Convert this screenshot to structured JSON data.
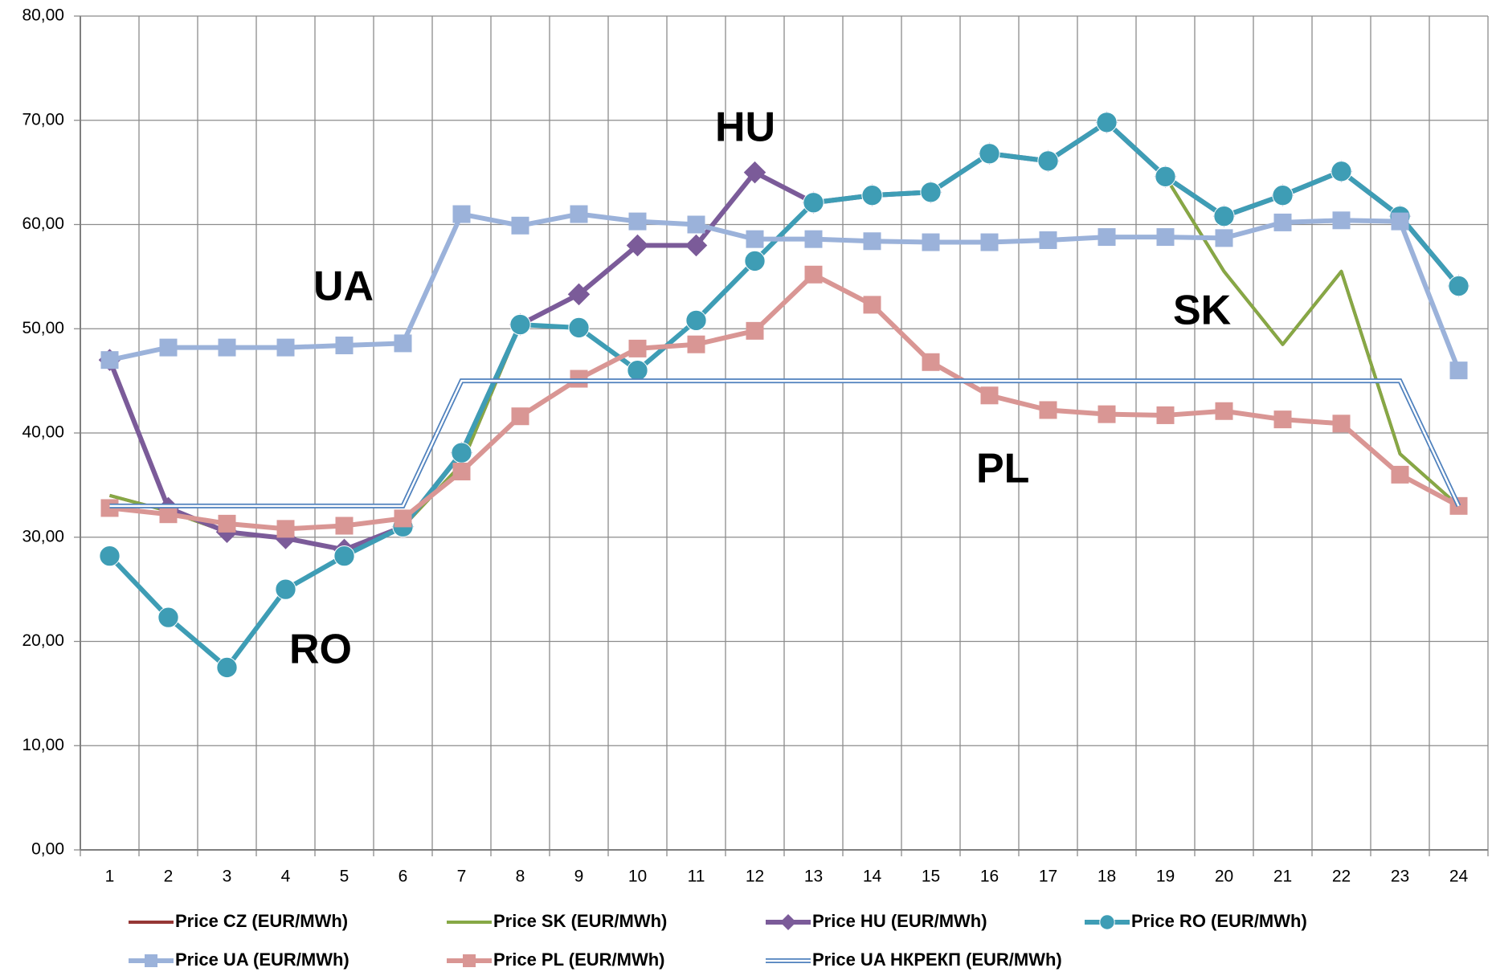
{
  "chart_data": {
    "type": "line",
    "categories": [
      "1",
      "2",
      "3",
      "4",
      "5",
      "6",
      "7",
      "8",
      "9",
      "10",
      "11",
      "12",
      "13",
      "14",
      "15",
      "16",
      "17",
      "18",
      "19",
      "20",
      "21",
      "22",
      "23",
      "24"
    ],
    "ylim": [
      0,
      80
    ],
    "yticks": [
      {
        "value": 0,
        "label": "0,00"
      },
      {
        "value": 10,
        "label": "10,00"
      },
      {
        "value": 20,
        "label": "20,00"
      },
      {
        "value": 30,
        "label": "30,00"
      },
      {
        "value": 40,
        "label": "40,00"
      },
      {
        "value": 50,
        "label": "50,00"
      },
      {
        "value": 60,
        "label": "60,00"
      },
      {
        "value": 70,
        "label": "70,00"
      },
      {
        "value": 80,
        "label": "80,00"
      }
    ],
    "grid": true,
    "legend": "bottom",
    "series": [
      {
        "name": "Price CZ (EUR/MWh)",
        "color": "#953735",
        "values": [
          34.0,
          32.5,
          30.5,
          29.9,
          28.8,
          31.0,
          37.0,
          50.4,
          50.1,
          46.0,
          50.8,
          56.5,
          62.1,
          62.8,
          63.1,
          66.8,
          66.1,
          69.8,
          64.6,
          55.5,
          48.5,
          55.5,
          38.0,
          33.0
        ]
      },
      {
        "name": "Price SK (EUR/MWh)",
        "color": "#86a845",
        "values": [
          34.0,
          32.5,
          30.5,
          29.9,
          28.8,
          31.0,
          37.0,
          50.4,
          50.1,
          46.0,
          50.8,
          56.5,
          62.1,
          62.8,
          63.1,
          66.8,
          66.1,
          69.8,
          64.6,
          55.5,
          48.5,
          55.5,
          38.0,
          33.0
        ]
      },
      {
        "name": "Price HU (EUR/MWh)",
        "color": "#7b5b99",
        "marker": "diamond",
        "values": [
          47.0,
          32.8,
          30.5,
          29.9,
          28.8,
          31.0,
          38.1,
          50.4,
          53.3,
          58.0,
          58.0,
          65.0,
          62.1,
          62.8,
          63.1,
          66.8,
          66.1,
          69.8,
          64.6,
          60.8,
          62.8,
          65.1,
          60.8,
          54.1
        ]
      },
      {
        "name": "Price RO (EUR/MWh)",
        "color": "#3e9db5",
        "marker": "circle",
        "values": [
          28.2,
          22.3,
          17.5,
          25.0,
          28.2,
          31.0,
          38.1,
          50.4,
          50.1,
          46.0,
          50.8,
          56.5,
          62.1,
          62.8,
          63.1,
          66.8,
          66.1,
          69.8,
          64.6,
          60.8,
          62.8,
          65.1,
          60.8,
          54.1
        ]
      },
      {
        "name": "Price UA (EUR/MWh)",
        "color": "#9bb2da",
        "marker": "square",
        "values": [
          47.0,
          48.2,
          48.2,
          48.2,
          48.4,
          48.6,
          61.0,
          59.9,
          61.0,
          60.3,
          60.0,
          58.6,
          58.6,
          58.4,
          58.3,
          58.3,
          58.5,
          58.8,
          58.8,
          58.7,
          60.2,
          60.4,
          60.3,
          46.0
        ]
      },
      {
        "name": "Price PL (EUR/MWh)",
        "color": "#d99694",
        "marker": "square",
        "values": [
          32.8,
          32.2,
          31.3,
          30.8,
          31.1,
          31.8,
          36.3,
          41.6,
          45.2,
          48.1,
          48.5,
          49.8,
          55.2,
          52.3,
          46.8,
          43.6,
          42.2,
          41.8,
          41.7,
          42.1,
          41.3,
          40.9,
          36.0,
          33.0
        ]
      },
      {
        "name": "Price UA НКРЕКП (EUR/MWh)",
        "color": "#4f81bd",
        "style": "double",
        "values": [
          33.0,
          33.0,
          33.0,
          33.0,
          33.0,
          33.0,
          45.0,
          45.0,
          45.0,
          45.0,
          45.0,
          45.0,
          45.0,
          45.0,
          45.0,
          45.0,
          45.0,
          45.0,
          45.0,
          45.0,
          45.0,
          45.0,
          45.0,
          33.0
        ]
      }
    ],
    "annotations": [
      "UA",
      "HU",
      "SK",
      "PL",
      "RO"
    ]
  }
}
